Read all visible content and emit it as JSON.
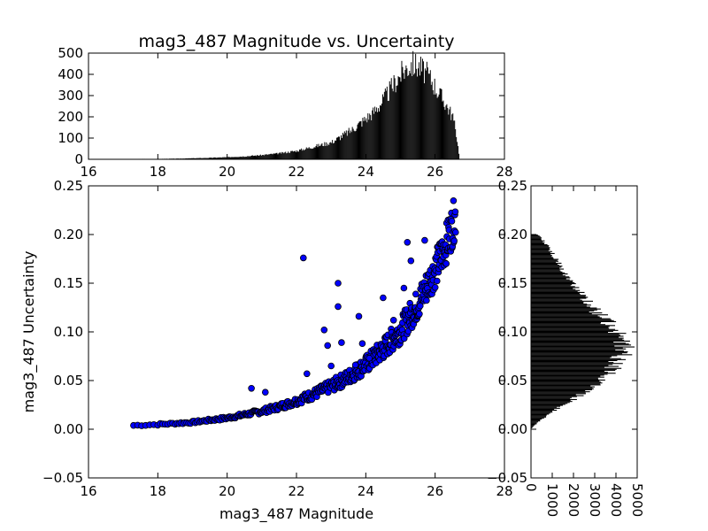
{
  "title": "mag3_487 Magnitude vs. Uncertainty",
  "chart_data": [
    {
      "id": "scatter",
      "type": "scatter",
      "xlabel": "mag3_487 Magnitude",
      "ylabel": "mag3_487 Uncertainty",
      "xlim": [
        16,
        28
      ],
      "ylim": [
        -0.05,
        0.25
      ],
      "xticks": [
        "16",
        "18",
        "20",
        "22",
        "24",
        "26",
        "28"
      ],
      "yticks": [
        "−0.05",
        "0.00",
        "0.05",
        "0.10",
        "0.15",
        "0.20",
        "0.25"
      ],
      "marker_color": "#0000ff",
      "edge_color": "#000000",
      "trend_points": [
        [
          17.3,
          0.003
        ],
        [
          18.0,
          0.004
        ],
        [
          18.5,
          0.005
        ],
        [
          19.0,
          0.006
        ],
        [
          19.5,
          0.008
        ],
        [
          20.0,
          0.01
        ],
        [
          20.5,
          0.013
        ],
        [
          21.0,
          0.016
        ],
        [
          21.5,
          0.02
        ],
        [
          22.0,
          0.025
        ],
        [
          22.5,
          0.031
        ],
        [
          23.0,
          0.038
        ],
        [
          23.5,
          0.046
        ],
        [
          24.0,
          0.057
        ],
        [
          24.5,
          0.071
        ],
        [
          25.0,
          0.088
        ],
        [
          25.5,
          0.112
        ],
        [
          26.0,
          0.145
        ],
        [
          26.3,
          0.168
        ],
        [
          26.5,
          0.187
        ],
        [
          26.6,
          0.198
        ]
      ],
      "outliers": [
        [
          22.2,
          0.176
        ],
        [
          23.2,
          0.15
        ],
        [
          23.2,
          0.126
        ],
        [
          23.8,
          0.116
        ],
        [
          22.8,
          0.102
        ],
        [
          22.9,
          0.086
        ],
        [
          23.3,
          0.089
        ],
        [
          23.9,
          0.088
        ],
        [
          24.5,
          0.135
        ],
        [
          25.2,
          0.192
        ],
        [
          25.7,
          0.194
        ],
        [
          23.0,
          0.065
        ],
        [
          22.3,
          0.057
        ],
        [
          20.7,
          0.042
        ],
        [
          21.1,
          0.038
        ],
        [
          24.8,
          0.112
        ],
        [
          25.1,
          0.145
        ],
        [
          25.3,
          0.173
        ],
        [
          23.7,
          0.066
        ],
        [
          24.1,
          0.073
        ]
      ]
    },
    {
      "id": "hist-x",
      "type": "bar",
      "xlim": [
        16,
        28
      ],
      "ylim": [
        0,
        500
      ],
      "xticks": [
        "16",
        "18",
        "20",
        "22",
        "24",
        "26",
        "28"
      ],
      "yticks": [
        "0",
        "100",
        "200",
        "300",
        "400",
        "500"
      ],
      "bins_x": [
        17.0,
        17.5,
        18.0,
        18.5,
        19.0,
        19.5,
        20.0,
        20.5,
        21.0,
        21.5,
        22.0,
        22.5,
        23.0,
        23.3,
        23.6,
        23.9,
        24.2,
        24.5,
        24.7,
        24.9,
        25.1,
        25.3,
        25.5,
        25.7,
        25.9,
        26.1,
        26.3,
        26.5,
        26.6,
        26.7
      ],
      "counts": [
        1,
        2,
        2,
        3,
        5,
        7,
        10,
        14,
        20,
        28,
        40,
        60,
        80,
        110,
        140,
        180,
        220,
        280,
        330,
        380,
        420,
        450,
        440,
        410,
        370,
        310,
        260,
        200,
        120,
        0
      ]
    },
    {
      "id": "hist-y",
      "type": "bar",
      "orientation": "horizontal",
      "xlim": [
        0,
        5000
      ],
      "ylim": [
        -0.05,
        0.25
      ],
      "xticks": [
        "0",
        "1000",
        "2000",
        "3000",
        "4000",
        "5000"
      ],
      "yticks": [
        "−0.05",
        "0.00",
        "0.05",
        "0.10",
        "0.15",
        "0.20",
        "0.25"
      ],
      "bins_y": [
        0.0,
        0.01,
        0.02,
        0.03,
        0.04,
        0.05,
        0.06,
        0.07,
        0.08,
        0.09,
        0.1,
        0.11,
        0.12,
        0.13,
        0.14,
        0.15,
        0.16,
        0.17,
        0.18,
        0.19,
        0.2
      ],
      "counts": [
        0,
        500,
        1200,
        2000,
        2700,
        3300,
        3800,
        4100,
        4400,
        4300,
        4000,
        3600,
        3100,
        2700,
        2300,
        1900,
        1600,
        1300,
        1000,
        700,
        300
      ]
    }
  ]
}
